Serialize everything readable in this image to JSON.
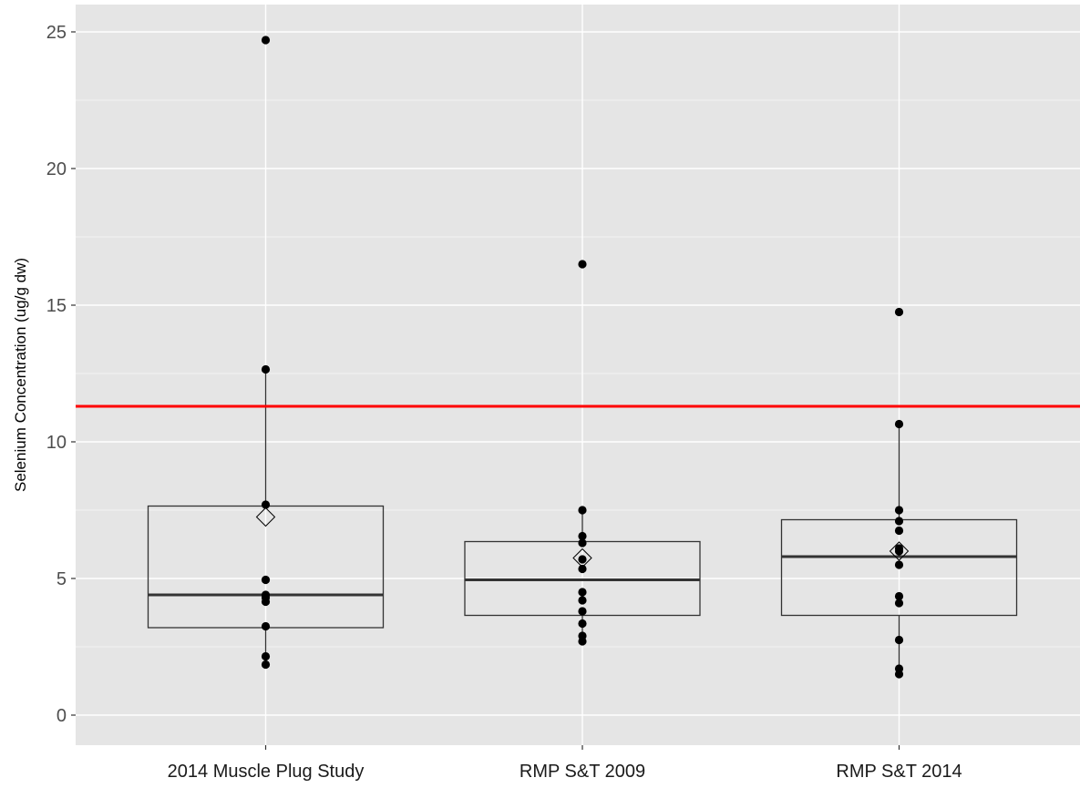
{
  "chart_data": {
    "type": "boxplot",
    "title": "",
    "xlabel": "",
    "ylabel": "Selenium Concentration (ug/g dw)",
    "ylim": [
      -1.1,
      26.0
    ],
    "yticks": [
      0,
      5,
      10,
      15,
      20,
      25
    ],
    "grid": true,
    "legend": "none",
    "reference_line": {
      "value": 11.3,
      "color": "#ff0000"
    },
    "categories": [
      "2014 Muscle Plug Study",
      "RMP S&T 2009",
      "RMP S&T 2014"
    ],
    "boxes": [
      {
        "q1": 3.2,
        "median": 4.4,
        "q3": 7.65,
        "whisker_low": 1.85,
        "whisker_high": 12.65,
        "mean": 7.25,
        "points": [
          24.7,
          12.65,
          7.7,
          4.95,
          4.4,
          4.3,
          4.15,
          3.25,
          2.15,
          1.85
        ]
      },
      {
        "q1": 3.65,
        "median": 4.95,
        "q3": 6.35,
        "whisker_low": 2.7,
        "whisker_high": 7.5,
        "mean": 5.75,
        "points": [
          16.5,
          7.5,
          6.55,
          6.3,
          5.7,
          5.35,
          4.5,
          4.2,
          3.8,
          3.35,
          2.9,
          2.7
        ]
      },
      {
        "q1": 3.65,
        "median": 5.8,
        "q3": 7.15,
        "whisker_low": 1.5,
        "whisker_high": 10.65,
        "mean": 6.0,
        "points": [
          14.75,
          10.65,
          7.5,
          7.1,
          6.75,
          6.1,
          6.0,
          5.5,
          4.35,
          4.1,
          2.75,
          1.7,
          1.5
        ]
      }
    ],
    "colors": {
      "panel_bg": "#e5e5e5",
      "grid": "#ffffff",
      "box_stroke": "#333333",
      "point": "#000000"
    }
  }
}
